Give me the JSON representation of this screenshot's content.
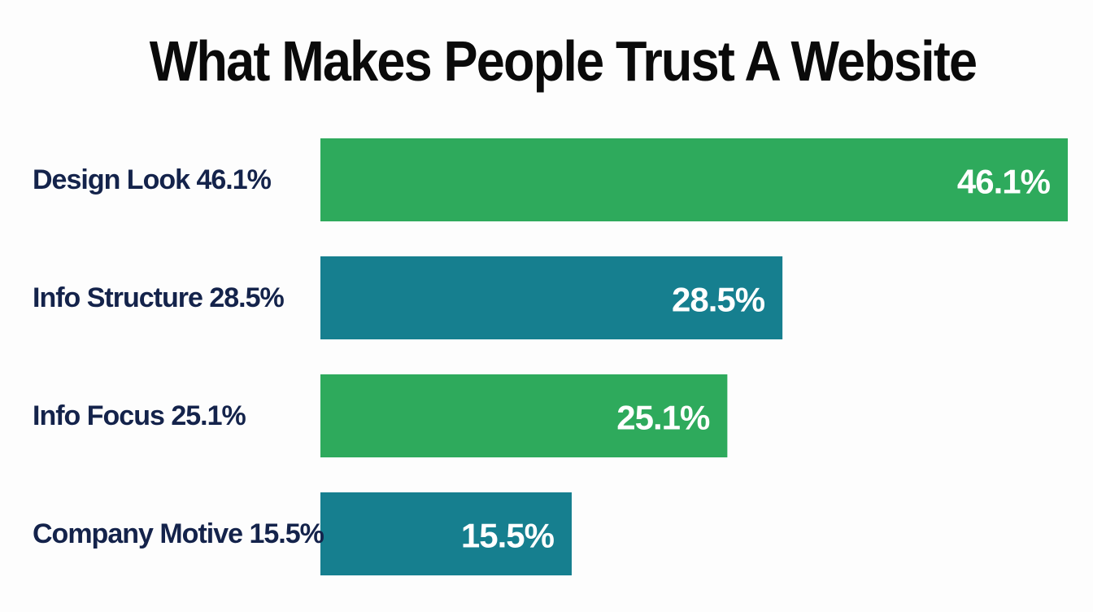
{
  "chart_data": {
    "type": "bar",
    "orientation": "horizontal",
    "title": "What Makes People Trust A Website",
    "categories": [
      "Design Look 46.1%",
      "Info Structure 28.5%",
      "Info Focus 25.1%",
      "Company Motive 15.5%"
    ],
    "values": [
      46.1,
      28.5,
      25.1,
      15.5
    ],
    "data_labels": [
      "46.1%",
      "28.5%",
      "25.1%",
      "15.5%"
    ],
    "bar_colors": [
      "#2eaa5c",
      "#167f8f",
      "#2eaa5c",
      "#167f8f"
    ],
    "label_color": "#14234b",
    "data_label_color": "#ffffff",
    "grid": false,
    "legend": false,
    "xlim": [
      0,
      46.1
    ]
  }
}
